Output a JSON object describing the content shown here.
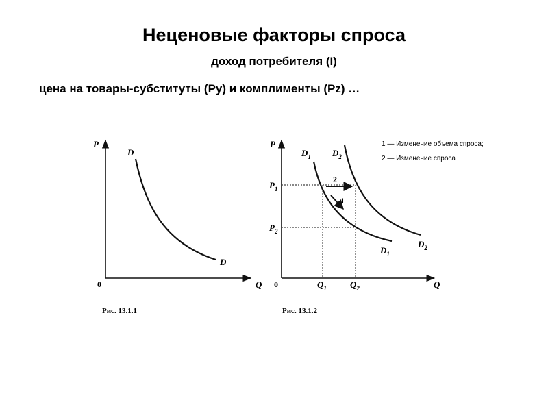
{
  "slide": {
    "title": "Неценовые факторы спроса",
    "subtitle": "доход потребителя (I)",
    "subtitle2": "цена на товары-субституты (Py) и комплименты (Pz) …"
  },
  "chart_data": [
    {
      "type": "line",
      "caption": "Рис. 13.1.1",
      "xlabel": "Q",
      "ylabel": "P",
      "origin_label": "0",
      "grid": false,
      "series": [
        {
          "name": "D",
          "end_label": "D"
        }
      ]
    },
    {
      "type": "line",
      "caption": "Рис. 13.1.2",
      "xlabel": "Q",
      "ylabel": "P",
      "origin_label": "0",
      "grid": false,
      "ticks_y": [
        {
          "main": "P",
          "sub": "1"
        },
        {
          "main": "P",
          "sub": "2"
        }
      ],
      "ticks_x": [
        {
          "main": "Q",
          "sub": "1"
        },
        {
          "main": "Q",
          "sub": "2"
        }
      ],
      "series": [
        {
          "name": "D",
          "sub": "1"
        },
        {
          "name": "D",
          "sub": "2"
        }
      ],
      "arrows": [
        {
          "label": "2",
          "from": "Q1 at P1",
          "to": "Q2 at P1"
        },
        {
          "label": "1",
          "from": "P1 on D1",
          "to": "P2 on D1"
        }
      ],
      "legend": [
        "1 — Изменение объема спроса;",
        "2 — Изменение спроса"
      ],
      "legend_position": "top-right"
    }
  ]
}
